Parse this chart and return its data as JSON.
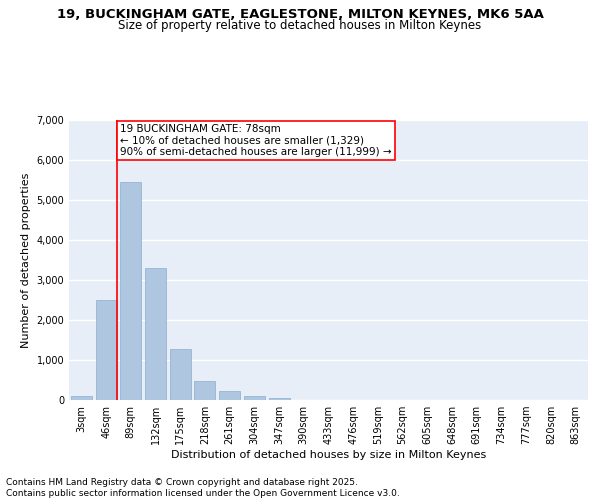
{
  "title_line1": "19, BUCKINGHAM GATE, EAGLESTONE, MILTON KEYNES, MK6 5AA",
  "title_line2": "Size of property relative to detached houses in Milton Keynes",
  "xlabel": "Distribution of detached houses by size in Milton Keynes",
  "ylabel": "Number of detached properties",
  "categories": [
    "3sqm",
    "46sqm",
    "89sqm",
    "132sqm",
    "175sqm",
    "218sqm",
    "261sqm",
    "304sqm",
    "347sqm",
    "390sqm",
    "433sqm",
    "476sqm",
    "519sqm",
    "562sqm",
    "605sqm",
    "648sqm",
    "691sqm",
    "734sqm",
    "777sqm",
    "820sqm",
    "863sqm"
  ],
  "values": [
    100,
    2500,
    5450,
    3300,
    1280,
    470,
    225,
    100,
    50,
    0,
    0,
    0,
    0,
    0,
    0,
    0,
    0,
    0,
    0,
    0,
    0
  ],
  "bar_color": "#aec6df",
  "bar_edgecolor": "#8aaece",
  "vline_x_index": 1,
  "vline_color": "red",
  "annotation_text": "19 BUCKINGHAM GATE: 78sqm\n← 10% of detached houses are smaller (1,329)\n90% of semi-detached houses are larger (11,999) →",
  "annotation_box_color": "white",
  "annotation_box_edgecolor": "red",
  "ylim": [
    0,
    7000
  ],
  "yticks": [
    0,
    1000,
    2000,
    3000,
    4000,
    5000,
    6000,
    7000
  ],
  "background_color": "#e8eef8",
  "grid_color": "white",
  "footer_text": "Contains HM Land Registry data © Crown copyright and database right 2025.\nContains public sector information licensed under the Open Government Licence v3.0.",
  "title_fontsize": 9.5,
  "subtitle_fontsize": 8.5,
  "xlabel_fontsize": 8,
  "ylabel_fontsize": 8,
  "tick_fontsize": 7,
  "annotation_fontsize": 7.5,
  "footer_fontsize": 6.5
}
